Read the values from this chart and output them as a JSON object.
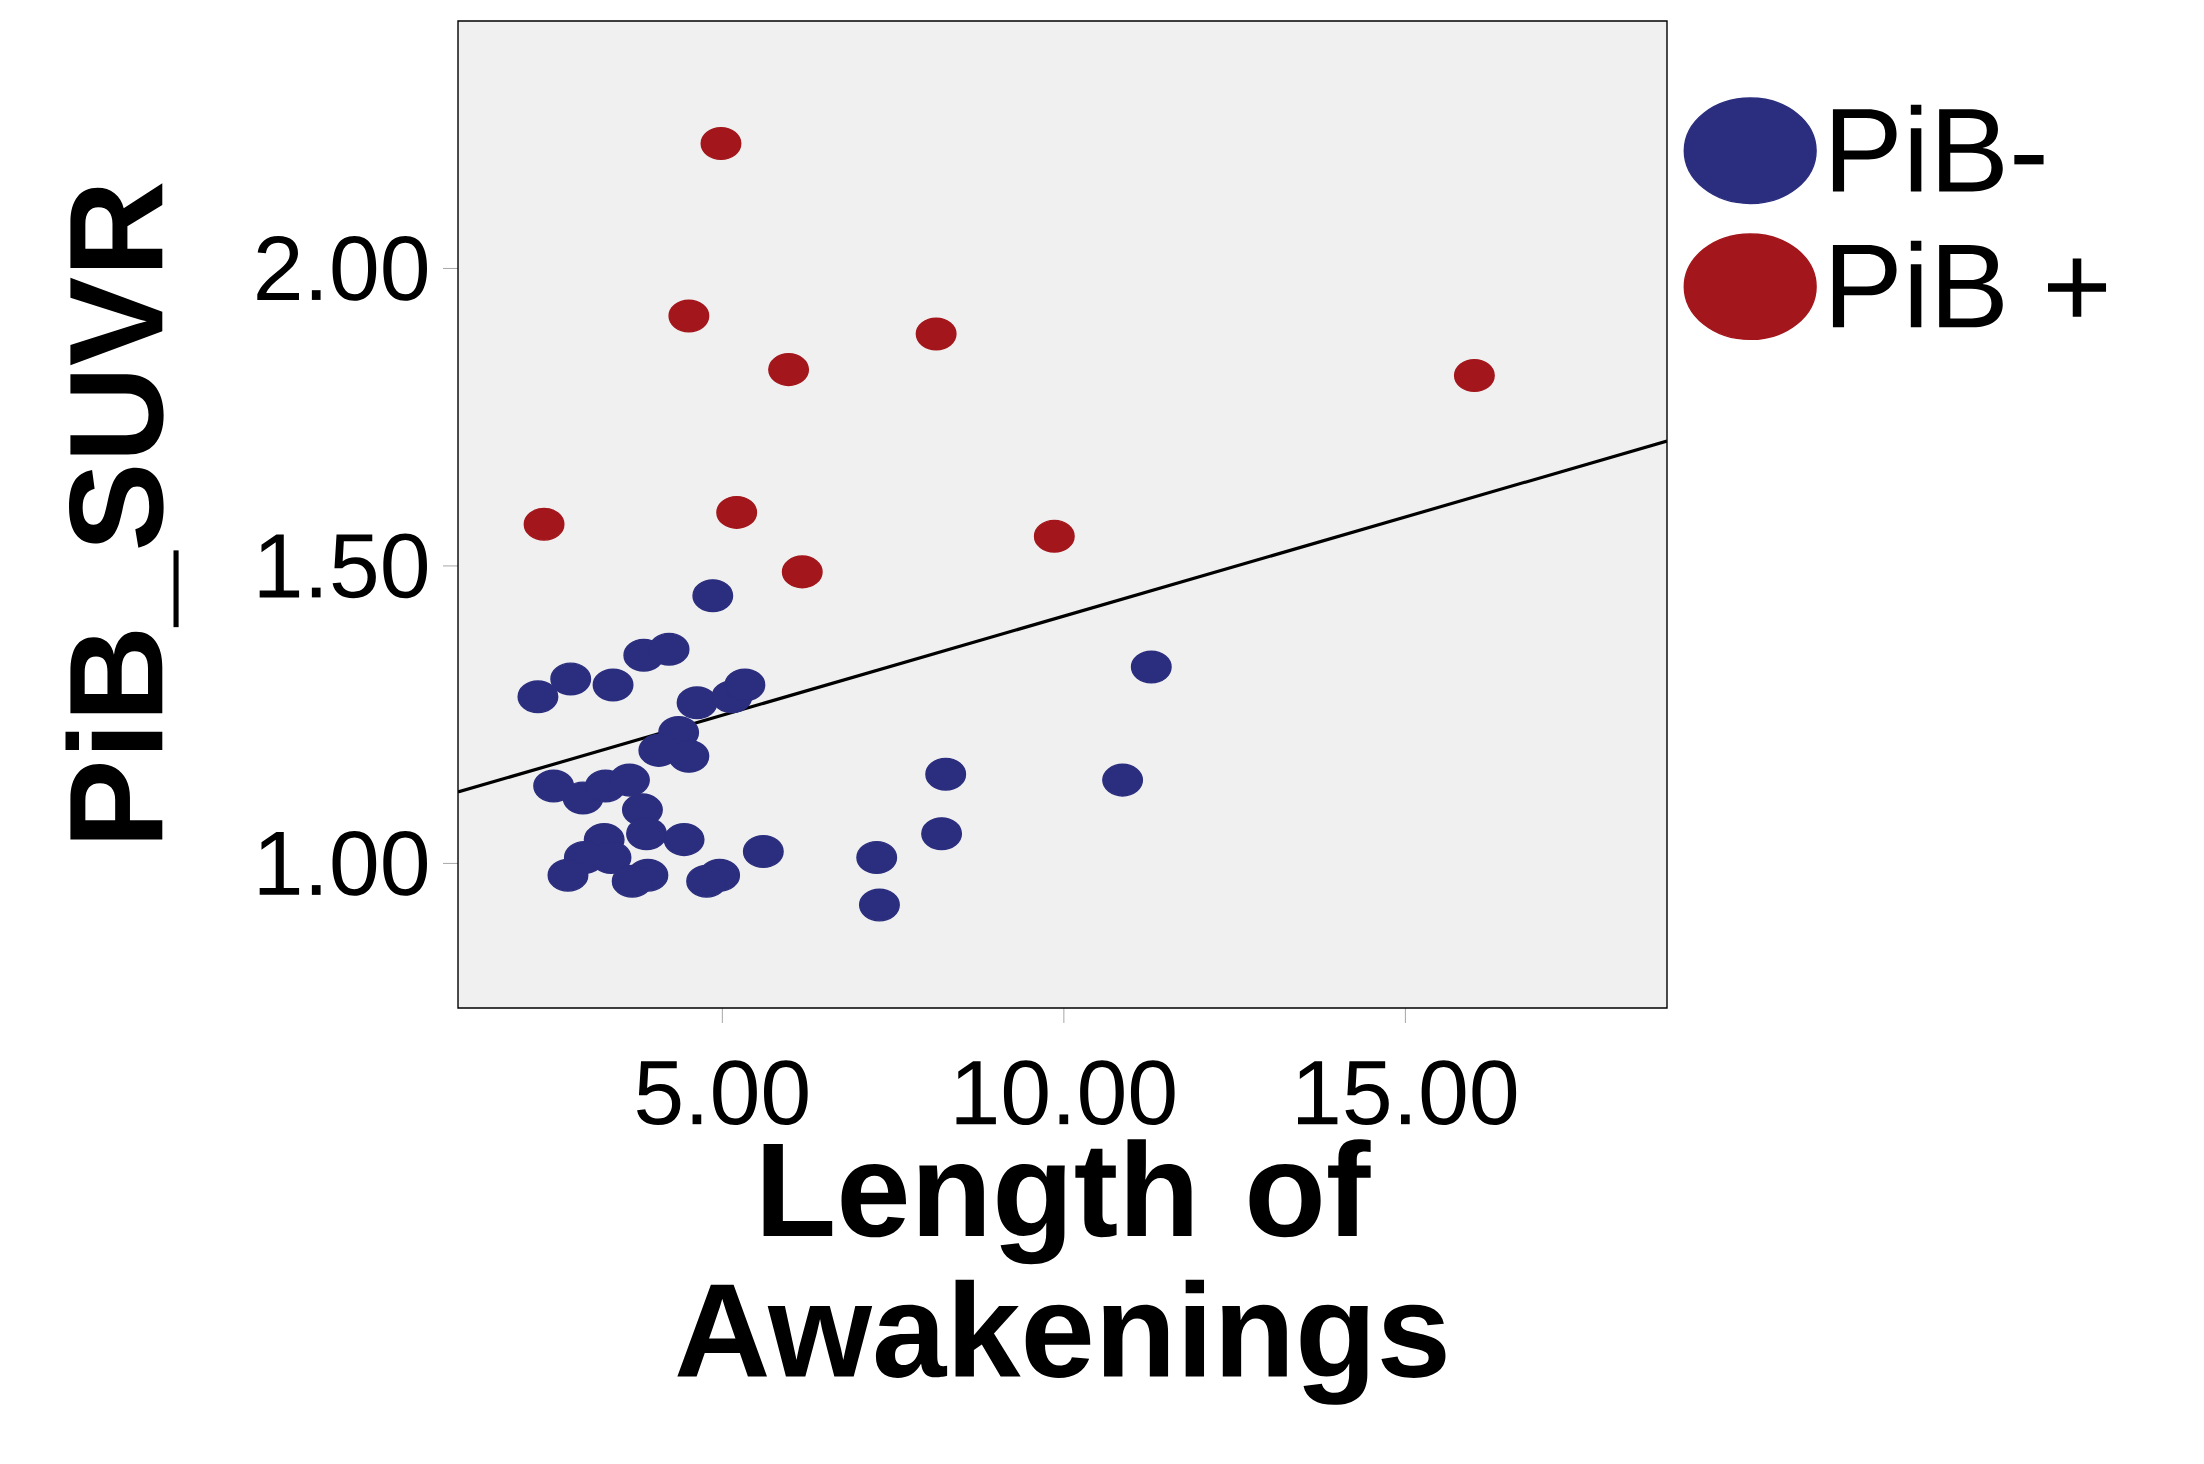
{
  "chart_data": {
    "type": "scatter",
    "xlabel": "Length of Awakenings",
    "ylabel": "PiB_SUVR",
    "xlim": [
      1.13,
      18.83
    ],
    "ylim": [
      0.757,
      2.416
    ],
    "xticks": [
      {
        "value": 5,
        "label": "5.00"
      },
      {
        "value": 10,
        "label": "10.00"
      },
      {
        "value": 15,
        "label": "15.00"
      }
    ],
    "yticks": [
      {
        "value": 1,
        "label": "1.00"
      },
      {
        "value": 1.5,
        "label": "1.50"
      },
      {
        "value": 2,
        "label": "2.00"
      }
    ],
    "grid": false,
    "legend": "top right",
    "series": [
      {
        "name": "PiB-",
        "marker": "circle",
        "color": "#2b2e7e",
        "x": [
          2.3,
          2.78,
          3.4,
          3.85,
          4.22,
          4.86,
          4.63,
          5.14,
          5.33,
          4.36,
          4.07,
          4.51,
          2.53,
          2.96,
          3.29,
          3.64,
          3.83,
          3.89,
          4.44,
          3.27,
          2.98,
          3.37,
          2.74,
          3.91,
          3.68,
          4.96,
          4.77,
          5.6,
          7.26,
          7.3,
          8.21,
          8.27,
          10.86,
          11.28
        ],
        "values": [
          1.28,
          1.31,
          1.3,
          1.35,
          1.36,
          1.45,
          1.27,
          1.28,
          1.3,
          1.22,
          1.19,
          1.18,
          1.13,
          1.11,
          1.13,
          1.14,
          1.09,
          1.05,
          1.04,
          1.04,
          1.01,
          1.01,
          0.98,
          0.98,
          0.97,
          0.98,
          0.97,
          1.02,
          1.01,
          0.93,
          1.05,
          1.15,
          1.14,
          1.33
        ]
      },
      {
        "name": "PiB +",
        "marker": "circle",
        "color": "#a3161b",
        "x": [
          4.98,
          4.51,
          5.97,
          8.13,
          16.01,
          2.39,
          5.21,
          6.17,
          9.86
        ],
        "values": [
          2.21,
          1.92,
          1.83,
          1.89,
          1.82,
          1.57,
          1.59,
          1.49,
          1.55
        ]
      },
      {
        "type": "line",
        "marker": "none",
        "color": "#000000",
        "x": [
          1.13,
          18.83
        ],
        "values": [
          1.12,
          1.71
        ]
      }
    ]
  }
}
